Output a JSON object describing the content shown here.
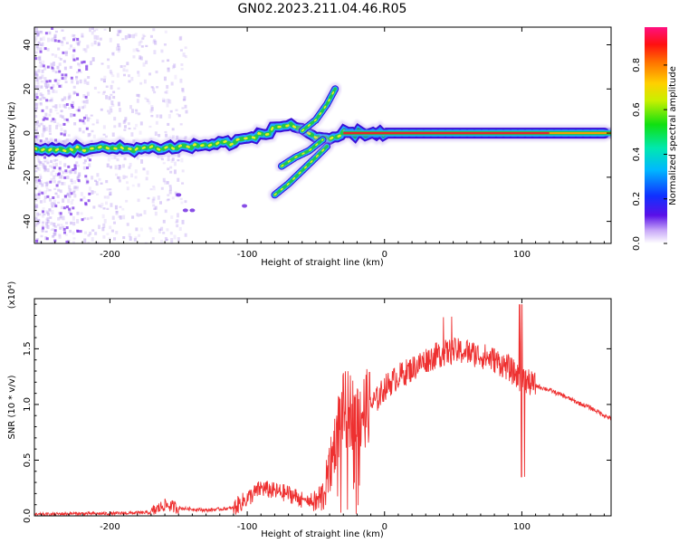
{
  "title": "GN02.2023.211.04.46.R05",
  "colors": {
    "snr_line": "#ee3030",
    "ridge_core": "#e8262a",
    "ridge_inner": "#22c84a",
    "ridge_mid": "#22a8ff",
    "ridge_outer": "#3a10d8",
    "haze": "#b89cf0"
  },
  "chart_data": [
    {
      "type": "heatmap",
      "title": "",
      "xlabel": "Height of straight line (km)",
      "ylabel": "Frequency (Hz)",
      "xlim": [
        -255,
        165
      ],
      "ylim": [
        -50,
        48
      ],
      "xticks": [
        -200,
        -100,
        0,
        100
      ],
      "yticks": [
        -40,
        -20,
        0,
        20,
        40
      ],
      "colorbar": {
        "label": "Normalized spectral amplitude",
        "range": [
          0.0,
          0.97
        ],
        "ticks": [
          "0.0",
          "0.2",
          "0.4",
          "0.6",
          "0.8"
        ],
        "colormap": "rainbow (white/violet → blue → cyan → green → yellow → orange → red → magenta)"
      },
      "features": [
        {
          "name": "main ridge",
          "x": [
            -255,
            -220,
            -180,
            -140,
            -110,
            -90,
            -80,
            -70,
            -60,
            -50,
            -40,
            -30,
            0,
            50,
            90,
            120,
            160
          ],
          "y": [
            -8,
            -7,
            -7,
            -6,
            -4,
            -1,
            2,
            4,
            2,
            -2,
            -4,
            0,
            0,
            0,
            0,
            0,
            0
          ]
        },
        {
          "name": "upper branch",
          "x": [
            -60,
            -50,
            -42,
            -36
          ],
          "y": [
            1,
            6,
            13,
            20
          ]
        },
        {
          "name": "lower branch",
          "x": [
            -80,
            -70,
            -60,
            -50,
            -42
          ],
          "y": [
            -28,
            -23,
            -17,
            -11,
            -6
          ]
        },
        {
          "name": "middle branch",
          "x": [
            -75,
            -65,
            -55,
            -45
          ],
          "y": [
            -15,
            -11,
            -8,
            -3
          ]
        }
      ]
    },
    {
      "type": "line",
      "title": "",
      "xlabel": "Height of straight line (km)",
      "ylabel": "SNR (10 * v/v)",
      "yscale_note": "(x10⁴)",
      "xlim": [
        -255,
        165
      ],
      "ylim": [
        0,
        1.95
      ],
      "xticks": [
        -200,
        -100,
        0,
        100
      ],
      "yticks": [
        "0.0",
        "0.5",
        "1.0",
        "1.5"
      ],
      "x": [
        -255,
        -230,
        -200,
        -170,
        -160,
        -150,
        -130,
        -110,
        -95,
        -90,
        -80,
        -70,
        -60,
        -50,
        -45,
        -40,
        -35,
        -30,
        -25,
        -20,
        -15,
        -10,
        -5,
        0,
        10,
        20,
        30,
        40,
        50,
        60,
        70,
        80,
        90,
        100,
        110,
        120,
        130,
        140,
        150,
        165
      ],
      "series": [
        {
          "values": [
            0.01,
            0.02,
            0.02,
            0.03,
            0.1,
            0.07,
            0.05,
            0.07,
            0.2,
            0.25,
            0.22,
            0.2,
            0.15,
            0.12,
            0.18,
            0.4,
            0.75,
            0.95,
            0.95,
            0.9,
            0.95,
            1.0,
            1.05,
            1.15,
            1.25,
            1.32,
            1.4,
            1.45,
            1.48,
            1.47,
            1.44,
            1.4,
            1.33,
            1.22,
            1.17,
            1.13,
            1.08,
            1.02,
            0.97,
            0.87
          ]
        }
      ]
    }
  ]
}
